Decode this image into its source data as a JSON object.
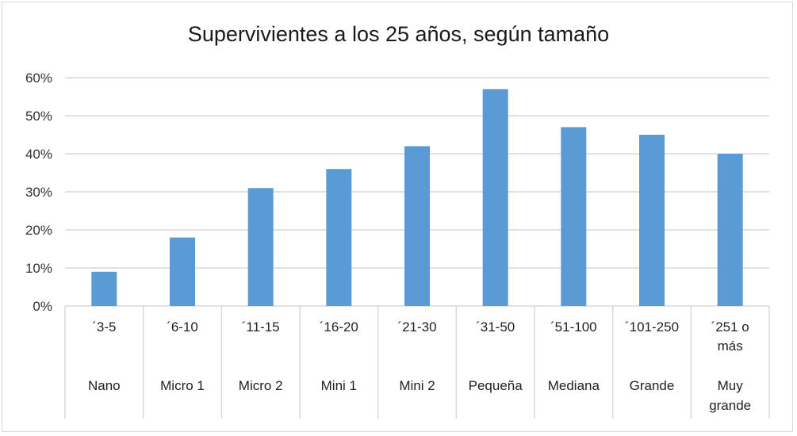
{
  "chart_data": {
    "type": "bar",
    "title": "Supervivientes a los 25 años, según tamaño",
    "categories": [
      {
        "range": "´3-5",
        "label": "Nano"
      },
      {
        "range": "´6-10",
        "label": "Micro 1"
      },
      {
        "range": "´11-15",
        "label": "Micro 2"
      },
      {
        "range": "´16-20",
        "label": "Mini 1"
      },
      {
        "range": "´21-30",
        "label": "Mini 2"
      },
      {
        "range": "´31-50",
        "label": "Pequeña"
      },
      {
        "range": "´51-100",
        "label": "Mediana"
      },
      {
        "range": "´101-250",
        "label": "Grande"
      },
      {
        "range": "´251 o más",
        "label": "Muy grande"
      }
    ],
    "values": [
      9,
      18,
      31,
      36,
      42,
      57,
      47,
      45,
      40
    ],
    "unit": "%",
    "ylim": [
      0,
      60
    ],
    "yticks": [
      "0%",
      "10%",
      "20%",
      "30%",
      "40%",
      "50%",
      "60%"
    ],
    "grid": true,
    "bar_color": "#5b9bd5",
    "grid_color": "#d9d9d9"
  }
}
